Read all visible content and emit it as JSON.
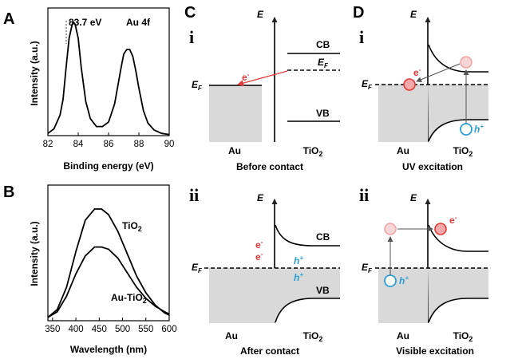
{
  "panels": {
    "A": "A",
    "B": "B",
    "C": "C",
    "D": "D",
    "ci": "i",
    "cii": "ii",
    "di": "i",
    "dii": "ii"
  },
  "chart_data": [
    {
      "type": "line",
      "panel": "A",
      "xlabel": "Binding energy (eV)",
      "ylabel": "Intensity (a.u.)",
      "xlim": [
        82,
        90
      ],
      "xticks": [
        "82",
        "84",
        "86",
        "88",
        "90"
      ],
      "annotations": [
        "83.7 eV",
        "Au 4f"
      ],
      "series": [
        {
          "x": [
            82.0,
            82.4,
            82.8,
            83.0,
            83.2,
            83.4,
            83.6,
            83.7,
            83.8,
            84.0,
            84.2,
            84.5,
            84.8,
            85.2,
            85.6,
            86.0,
            86.4,
            86.8,
            87.0,
            87.2,
            87.4,
            87.6,
            87.8,
            88.0,
            88.3,
            88.6,
            89.0,
            89.5,
            90.0
          ],
          "y": [
            0.02,
            0.06,
            0.18,
            0.32,
            0.6,
            0.86,
            0.98,
            1.0,
            0.98,
            0.86,
            0.6,
            0.3,
            0.15,
            0.08,
            0.08,
            0.12,
            0.28,
            0.58,
            0.72,
            0.76,
            0.76,
            0.7,
            0.57,
            0.42,
            0.22,
            0.11,
            0.05,
            0.02,
            0.01
          ]
        }
      ]
    },
    {
      "type": "line",
      "panel": "B",
      "xlabel": "Wavelength (nm)",
      "ylabel": "Intensity (a.u.)",
      "xlim": [
        340,
        600
      ],
      "xticks": [
        "350",
        "400",
        "450",
        "500",
        "550",
        "600"
      ],
      "series": [
        {
          "name": "TiO2",
          "x": [
            340,
            360,
            380,
            400,
            420,
            440,
            455,
            470,
            490,
            510,
            530,
            550,
            570,
            590,
            600
          ],
          "y": [
            0.03,
            0.1,
            0.3,
            0.62,
            0.9,
            1.0,
            1.0,
            0.95,
            0.8,
            0.6,
            0.4,
            0.25,
            0.14,
            0.07,
            0.05
          ]
        },
        {
          "name": "Au-TiO2",
          "x": [
            340,
            360,
            380,
            400,
            420,
            440,
            455,
            470,
            490,
            510,
            530,
            550,
            570,
            590,
            600
          ],
          "y": [
            0.03,
            0.08,
            0.22,
            0.42,
            0.58,
            0.66,
            0.66,
            0.64,
            0.56,
            0.43,
            0.3,
            0.2,
            0.13,
            0.08,
            0.06
          ]
        }
      ]
    }
  ],
  "C": {
    "energy_axis": "E",
    "i": {
      "ef_left": "E",
      "ef_sub": "F",
      "cb": "CB",
      "ef_right": "E",
      "ef_right_sub": "F",
      "vb": "VB",
      "electron": "e",
      "minus": "-",
      "au": "Au",
      "tio2": "TiO",
      "tio2_sub": "2",
      "caption": "Before contact"
    },
    "ii": {
      "ef_left": "E",
      "ef_sub": "F",
      "cb": "CB",
      "vb": "VB",
      "electron": "e",
      "minus": "-",
      "hole": "h",
      "plus": "+",
      "au": "Au",
      "tio2": "TiO",
      "tio2_sub": "2",
      "caption": "After contact"
    }
  },
  "D": {
    "energy_axis": "E",
    "i": {
      "ef_left": "E",
      "ef_sub": "F",
      "electron": "e",
      "minus": "-",
      "hole": "h",
      "plus": "+",
      "au": "Au",
      "tio2": "TiO",
      "tio2_sub": "2",
      "caption": "UV excitation"
    },
    "ii": {
      "ef_left": "E",
      "ef_sub": "F",
      "electron": "e",
      "minus": "-",
      "hole": "h",
      "plus": "+",
      "au": "Au",
      "tio2": "TiO",
      "tio2_sub": "2",
      "caption": "Visible excitation"
    }
  },
  "colors": {
    "electron": "#e0393a",
    "electron_faded": "#f4b3b3",
    "hole": "#2b9fd6",
    "metal_fill": "#d9d9d9",
    "line": "#000000"
  }
}
